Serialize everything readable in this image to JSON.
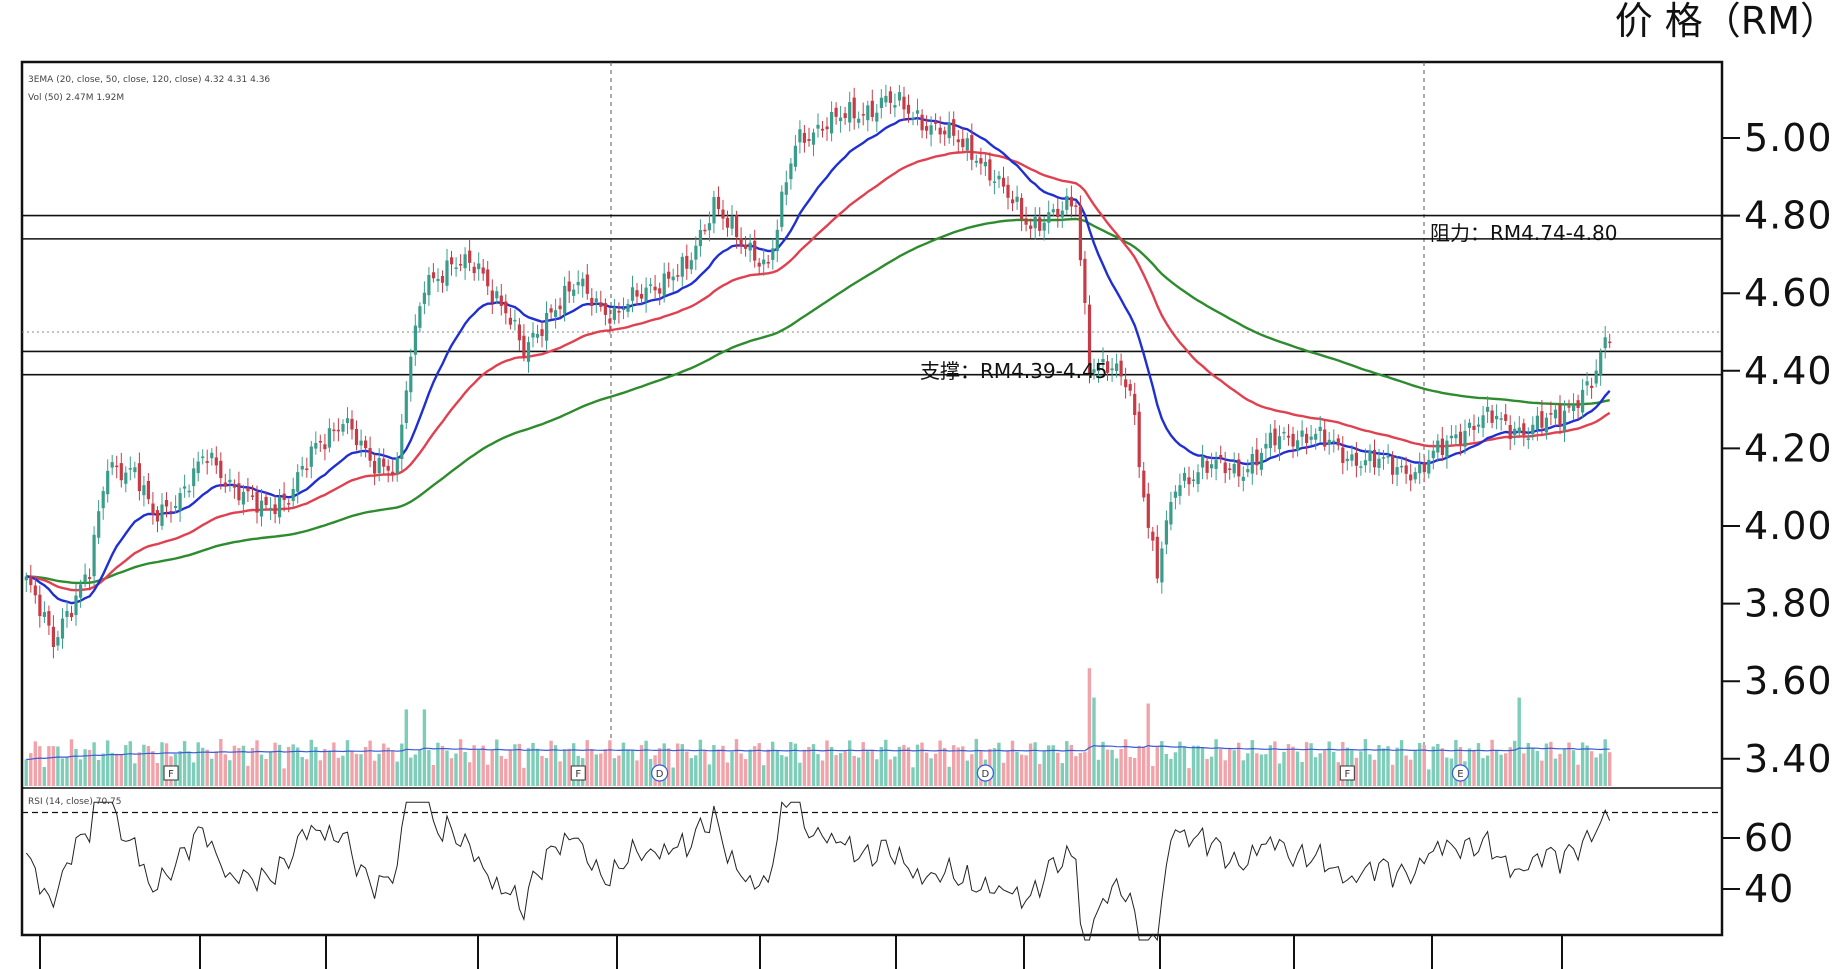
{
  "chart_data": {
    "type": "candlestick",
    "unit_label": "价 格（RM）",
    "price_axis": {
      "ticks": [
        "5.00",
        "4.80",
        "4.60",
        "4.40",
        "4.20",
        "4.00",
        "3.80",
        "3.60",
        "3.40"
      ],
      "range": [
        3.32,
        5.22
      ]
    },
    "rsi_axis": {
      "ticks": [
        "60",
        "40"
      ],
      "range": [
        16,
        96
      ],
      "level": 70
    },
    "resistance": {
      "label": "阻力：RM4.74-4.80",
      "low": 4.74,
      "high": 4.8
    },
    "support": {
      "label": "支撑：RM4.39-4.45",
      "low": 4.39,
      "high": 4.45
    },
    "reference_price": 4.5,
    "legend": {
      "ema_line": "3EMA (20, close, 50, close, 120, close)",
      "ema_values": [
        "4.32",
        "4.31",
        "4.36"
      ],
      "vol_line": "Vol (50)",
      "vol_values": [
        "2.47M",
        "1.92M"
      ],
      "rsi_line": "RSI (14, close)",
      "rsi_value": "70.75"
    },
    "event_markers": [
      "F",
      "F",
      "D",
      "D",
      "F",
      "E"
    ],
    "colors": {
      "up": "#3a9c8a",
      "down": "#c73b47",
      "vol_up": "#7ecdb9",
      "vol_down": "#f2a3a9",
      "ema_fast": "#1f2fd1",
      "ema_mid": "#e0404f",
      "ema_slow": "#2e8b2e",
      "grid": "#111111"
    },
    "close_anchors": [
      [
        0,
        3.86
      ],
      [
        6,
        3.7
      ],
      [
        8,
        3.76
      ],
      [
        14,
        3.88
      ],
      [
        18,
        4.16
      ],
      [
        24,
        4.14
      ],
      [
        28,
        4.02
      ],
      [
        34,
        4.08
      ],
      [
        40,
        4.18
      ],
      [
        46,
        4.1
      ],
      [
        52,
        4.04
      ],
      [
        58,
        4.08
      ],
      [
        64,
        4.2
      ],
      [
        70,
        4.28
      ],
      [
        76,
        4.16
      ],
      [
        82,
        4.16
      ],
      [
        84,
        4.36
      ],
      [
        88,
        4.62
      ],
      [
        94,
        4.68
      ],
      [
        100,
        4.66
      ],
      [
        106,
        4.56
      ],
      [
        110,
        4.44
      ],
      [
        116,
        4.56
      ],
      [
        122,
        4.62
      ],
      [
        130,
        4.54
      ],
      [
        138,
        4.62
      ],
      [
        146,
        4.66
      ],
      [
        152,
        4.84
      ],
      [
        158,
        4.72
      ],
      [
        164,
        4.68
      ],
      [
        170,
        4.98
      ],
      [
        176,
        5.04
      ],
      [
        184,
        5.06
      ],
      [
        190,
        5.1
      ],
      [
        196,
        5.06
      ],
      [
        202,
        5.02
      ],
      [
        210,
        4.96
      ],
      [
        216,
        4.86
      ],
      [
        222,
        4.78
      ],
      [
        228,
        4.8
      ],
      [
        232,
        4.84
      ],
      [
        235,
        4.42
      ],
      [
        240,
        4.4
      ],
      [
        244,
        4.36
      ],
      [
        248,
        4.0
      ],
      [
        250,
        3.88
      ],
      [
        254,
        4.1
      ],
      [
        260,
        4.16
      ],
      [
        268,
        4.14
      ],
      [
        276,
        4.22
      ],
      [
        284,
        4.24
      ],
      [
        292,
        4.18
      ],
      [
        300,
        4.16
      ],
      [
        308,
        4.14
      ],
      [
        316,
        4.24
      ],
      [
        324,
        4.28
      ],
      [
        332,
        4.24
      ],
      [
        340,
        4.3
      ],
      [
        346,
        4.36
      ],
      [
        350,
        4.5
      ]
    ],
    "total_sessions": 351
  }
}
